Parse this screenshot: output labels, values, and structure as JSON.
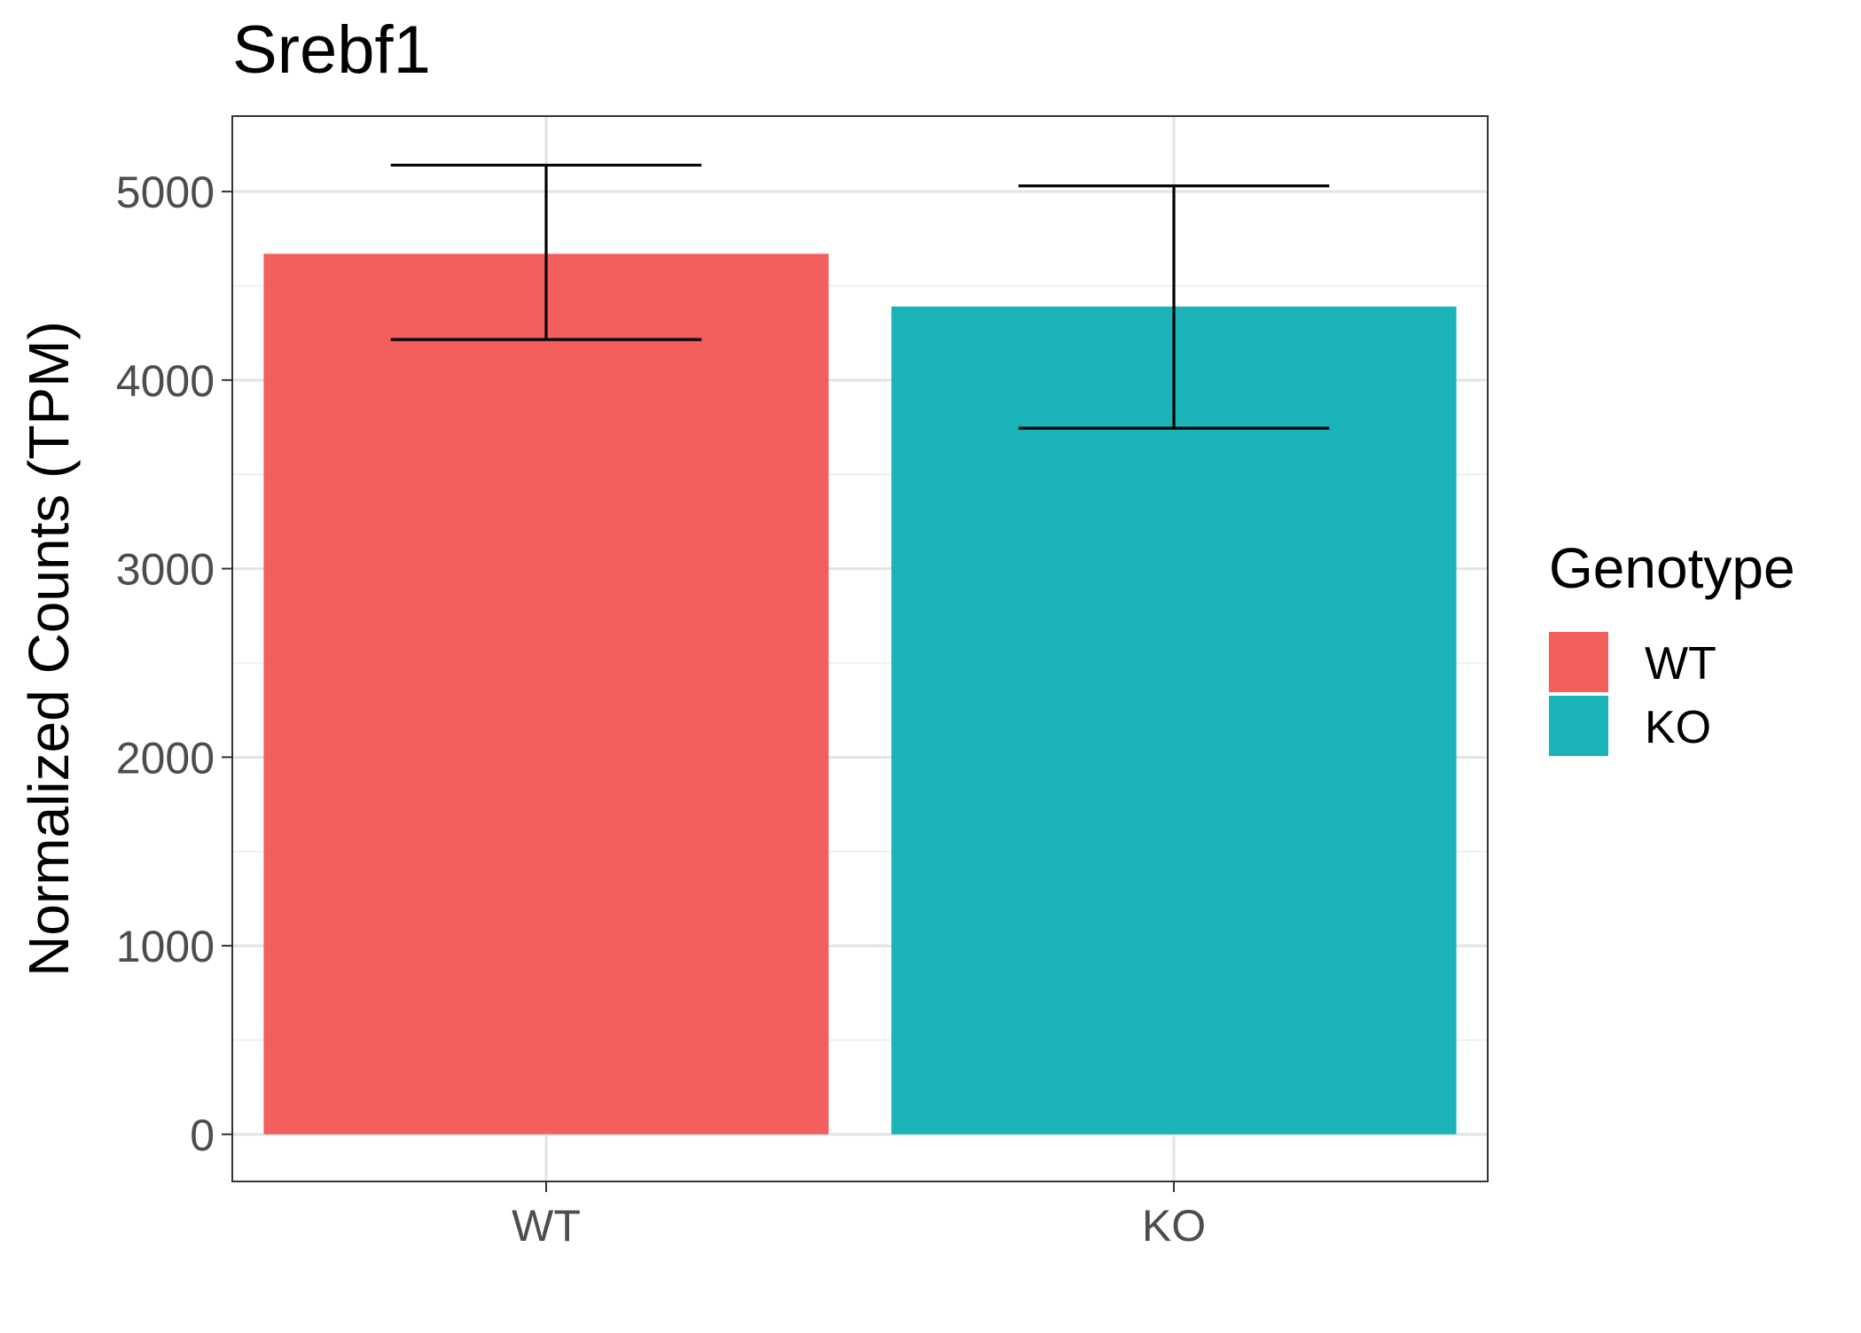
{
  "chart_data": {
    "type": "bar",
    "title": "Srebf1",
    "xlabel": "",
    "ylabel": "Normalized Counts (TPM)",
    "categories": [
      "WT",
      "KO"
    ],
    "values": [
      4670,
      4390
    ],
    "error_low": [
      4215,
      3745
    ],
    "error_high": [
      5140,
      5030
    ],
    "colors": [
      "#F25F5C",
      "#1AB3B8"
    ],
    "ylim": [
      -250,
      5400
    ],
    "yticks": [
      0,
      1000,
      2000,
      3000,
      4000,
      5000
    ],
    "ytick_labels": [
      "0",
      "1000",
      "2000",
      "3000",
      "4000",
      "5000"
    ],
    "grid": true,
    "legend": {
      "title": "Genotype",
      "placement": "right",
      "items": [
        {
          "label": "WT",
          "color": "#F25F5C"
        },
        {
          "label": "KO",
          "color": "#1AB3B8"
        }
      ]
    }
  }
}
